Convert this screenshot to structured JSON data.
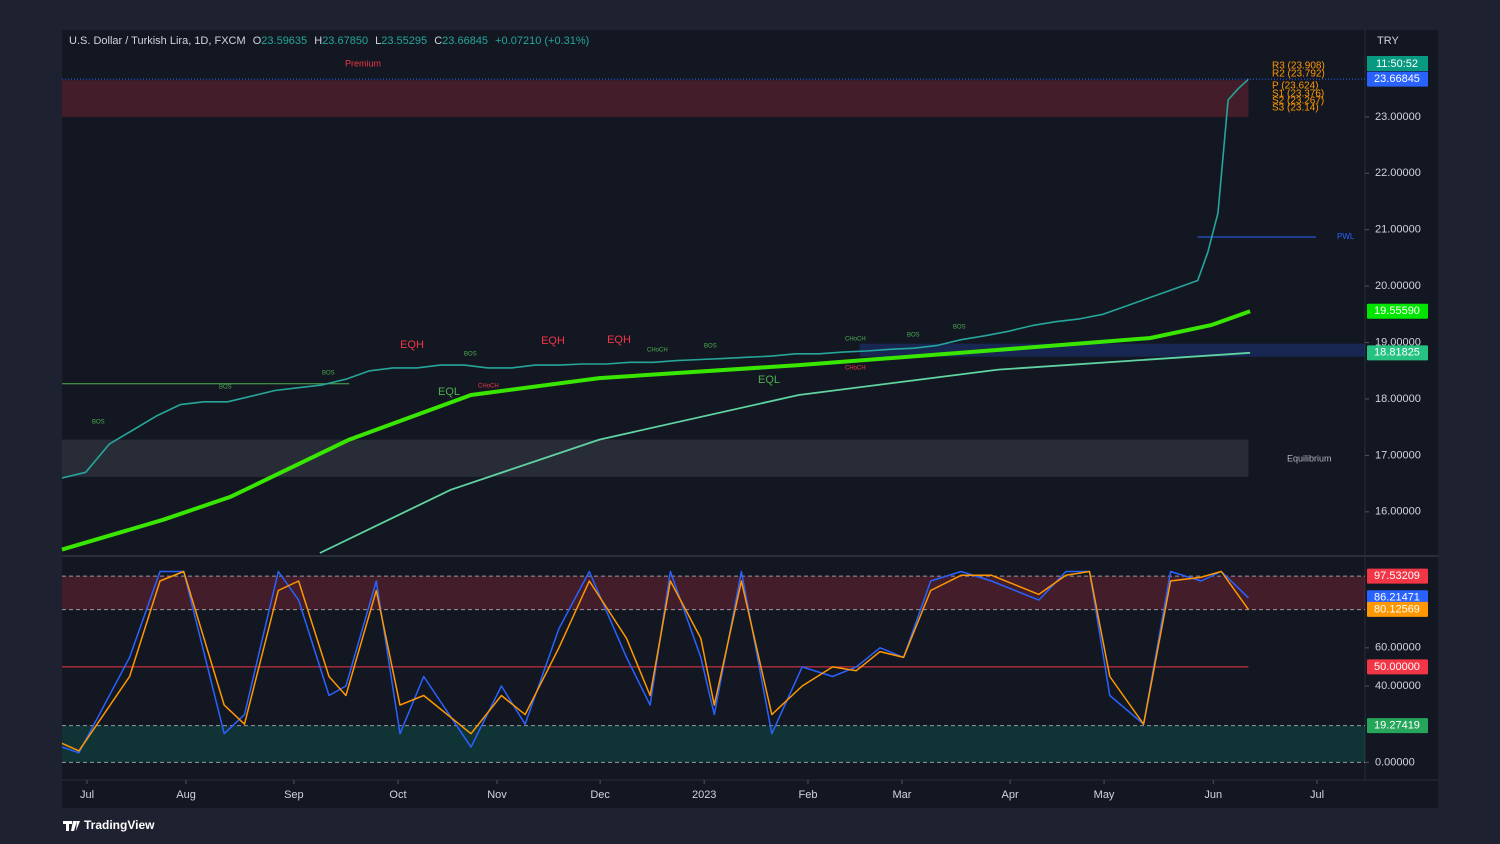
{
  "header": {
    "symbol": "U.S. Dollar / Turkish Lira, 1D, FXCM",
    "ohlc": [
      {
        "key": "O",
        "value": "23.59635"
      },
      {
        "key": "H",
        "value": "23.67850"
      },
      {
        "key": "L",
        "value": "23.55295"
      },
      {
        "key": "C",
        "value": "23.66845"
      }
    ],
    "change": "+0.07210 (+0.31%)",
    "countdown": "11:50:52",
    "currency": "TRY"
  },
  "chart_data": [
    {
      "type": "line",
      "xlim": [
        0,
        385.5
      ],
      "xticks": [
        {
          "value": 7.4,
          "label": "Jul"
        },
        {
          "value": 36.7,
          "label": "Aug"
        },
        {
          "value": 68.6,
          "label": "Sep"
        },
        {
          "value": 99.4,
          "label": "Oct"
        },
        {
          "value": 128.7,
          "label": "Nov"
        },
        {
          "value": 159.2,
          "label": "Dec"
        },
        {
          "value": 190,
          "label": "2023"
        },
        {
          "value": 220.7,
          "label": "Feb"
        },
        {
          "value": 248.5,
          "label": "Mar"
        },
        {
          "value": 280.5,
          "label": "Apr"
        },
        {
          "value": 308.3,
          "label": "May"
        },
        {
          "value": 340.6,
          "label": "Jun"
        },
        {
          "value": 371.3,
          "label": "Jul"
        }
      ],
      "ylim": [
        15.27,
        24.54
      ],
      "yticks": [
        {
          "value": 16,
          "label": "16.00000"
        },
        {
          "value": 17,
          "label": "17.00000"
        },
        {
          "value": 18,
          "label": "18.00000"
        },
        {
          "value": 19,
          "label": "19.00000"
        },
        {
          "value": 20,
          "label": "20.00000"
        },
        {
          "value": 21,
          "label": "21.00000"
        },
        {
          "value": 22,
          "label": "22.00000"
        },
        {
          "value": 23,
          "label": "23.00000"
        }
      ],
      "grid": false,
      "series": [
        {
          "name": "U.S. Dollar / Turkish Lira",
          "color": "#26a69a",
          "width": 1.6,
          "x": [
            0,
            7,
            14,
            21,
            28,
            35,
            42,
            49,
            56,
            63,
            70,
            77,
            84,
            91,
            98,
            105,
            112,
            119,
            126,
            133,
            140,
            147,
            154,
            161,
            168,
            175,
            182,
            189,
            196,
            203,
            210,
            217,
            224,
            231,
            238,
            245,
            252,
            259,
            266,
            273,
            280,
            287,
            294,
            301,
            308,
            315,
            322,
            329,
            336,
            339,
            342,
            345,
            348,
            351
          ],
          "values": [
            16.6,
            16.7,
            17.2,
            17.45,
            17.7,
            17.9,
            17.95,
            17.95,
            18.05,
            18.15,
            18.2,
            18.25,
            18.35,
            18.5,
            18.55,
            18.55,
            18.6,
            18.6,
            18.55,
            18.55,
            18.6,
            18.6,
            18.62,
            18.62,
            18.65,
            18.65,
            18.68,
            18.7,
            18.72,
            18.74,
            18.76,
            18.8,
            18.8,
            18.83,
            18.85,
            18.88,
            18.9,
            18.95,
            19.05,
            19.12,
            19.2,
            19.3,
            19.37,
            19.42,
            19.5,
            19.65,
            19.8,
            19.95,
            20.1,
            20.6,
            21.3,
            23.3,
            23.5,
            23.66845
          ]
        },
        {
          "color": "#39e600",
          "width": 4,
          "x": [
            0,
            30,
            50,
            85,
            121,
            159,
            218,
            277,
            322,
            340,
            351.5
          ],
          "values": [
            15.33,
            15.86,
            16.27,
            17.28,
            18.07,
            18.37,
            18.6,
            18.87,
            19.08,
            19.31,
            19.5559
          ]
        },
        {
          "color": "#5fd3a0",
          "width": 1.8,
          "x": [
            76.3,
            115,
            159,
            218,
            277,
            351.5
          ],
          "values": [
            15.27,
            16.39,
            17.28,
            18.07,
            18.52,
            18.81825
          ]
        }
      ],
      "zones": [
        {
          "from": 0,
          "to": 351,
          "low": 23.0,
          "high": 23.65,
          "color": "#f23645"
        },
        {
          "from": 0,
          "to": 351,
          "low": 16.62,
          "high": 17.28,
          "color": "#787b86"
        },
        {
          "from": 236,
          "to": 385.5,
          "low": 18.75,
          "high": 18.98,
          "color": "#2962ff"
        }
      ],
      "lines": [
        {
          "value": 18.27,
          "from": 0,
          "to": 85,
          "color": "#4caf50"
        },
        {
          "value": 20.87,
          "from": 336,
          "to": 371,
          "color": "#2962ff"
        },
        {
          "value": 23.66845,
          "from": 0,
          "to": 385.5,
          "color": "#2962ff"
        }
      ],
      "tags": [
        {
          "value": 23.66845,
          "color": "#2962ff"
        },
        {
          "value": 19.5559,
          "label": "19.55590",
          "color": "#00e600"
        },
        {
          "value": 18.81825,
          "color": "#26c281"
        }
      ],
      "annotations": [
        "Premium",
        "EQH",
        "EQH",
        "EQH",
        "EQL",
        "EQL",
        "BOS",
        "BOS",
        "BOS",
        "BOS",
        "BOS",
        "BOS",
        "BOS",
        "CHoCH",
        "CHoCH",
        "CHoCH",
        "CHoCH",
        "PWL",
        "Equilibrium",
        "R3 (23.908)",
        "R2 (23.792)",
        "P (23.624)",
        "S1 (23.376)",
        "S2 (23.267)",
        "S3 (23.14)"
      ]
    },
    {
      "type": "line",
      "xlim": [
        0,
        385.5
      ],
      "ylim": [
        -4,
        106
      ],
      "yticks": [
        {
          "value": 60,
          "label": "60.00000"
        },
        {
          "value": 40,
          "label": "40.00000"
        },
        {
          "value": 0,
          "label": "0.00000"
        }
      ],
      "grid": false,
      "series": [
        {
          "color": "#2962ff",
          "width": 1.5,
          "x": [
            0,
            5,
            20,
            29,
            36,
            48,
            54,
            64,
            70,
            79,
            84,
            93,
            100,
            107,
            121,
            130,
            137,
            147,
            156,
            167,
            174,
            180,
            189,
            193,
            201,
            210,
            219,
            228,
            235,
            242,
            249,
            257,
            266,
            275,
            289,
            297,
            304,
            310,
            320,
            328,
            337,
            343,
            351
          ],
          "values": [
            8,
            5,
            55,
            100,
            100,
            15,
            25,
            100,
            85,
            35,
            40,
            95,
            15,
            45,
            8,
            40,
            20,
            70,
            100,
            55,
            30,
            100,
            55,
            25,
            100,
            15,
            50,
            45,
            50,
            60,
            55,
            95,
            100,
            95,
            85,
            100,
            100,
            35,
            20,
            100,
            95,
            100,
            86.21471
          ]
        },
        {
          "color": "#ff9800",
          "width": 1.5,
          "x": [
            0,
            5,
            20,
            29,
            36,
            48,
            54,
            64,
            70,
            79,
            84,
            93,
            100,
            107,
            121,
            130,
            137,
            147,
            156,
            167,
            174,
            180,
            189,
            193,
            201,
            210,
            219,
            228,
            235,
            242,
            249,
            257,
            266,
            275,
            289,
            297,
            304,
            310,
            320,
            328,
            337,
            343,
            351
          ],
          "values": [
            10,
            6,
            45,
            95,
            100,
            30,
            20,
            90,
            95,
            45,
            35,
            90,
            30,
            35,
            15,
            35,
            25,
            60,
            95,
            65,
            35,
            95,
            65,
            30,
            95,
            25,
            40,
            50,
            48,
            58,
            55,
            90,
            98,
            98,
            88,
            98,
            100,
            45,
            20,
            95,
            97,
            100,
            80.12569
          ]
        }
      ],
      "zones": [
        {
          "from": 0,
          "to": 385.5,
          "low": 80,
          "high": 97.53209,
          "color": "#f23645"
        },
        {
          "from": 0,
          "to": 385.5,
          "low": 0,
          "high": 19.27419,
          "color": "#089981"
        }
      ],
      "lines": [
        {
          "value": 97.53209,
          "from": 0,
          "to": 385.5,
          "color": "#9598a1"
        },
        {
          "value": 80,
          "from": 0,
          "to": 385.5,
          "color": "#9598a1"
        },
        {
          "value": 50,
          "from": 0,
          "to": 351,
          "color": "#f23645"
        },
        {
          "value": 19.27419,
          "from": 0,
          "to": 385.5,
          "color": "#9598a1"
        },
        {
          "value": 0,
          "from": 0,
          "to": 385.5,
          "color": "#9598a1"
        }
      ],
      "tags": [
        {
          "value": 97.53209,
          "color": "#f23645"
        },
        {
          "value": 86.21471,
          "color": "#2962ff"
        },
        {
          "value": 80.12569,
          "color": "#ff9800"
        },
        {
          "value": 50,
          "label": "50.00000",
          "color": "#f23645"
        },
        {
          "value": 19.27419,
          "color": "#26a65b"
        }
      ]
    }
  ],
  "footer": {
    "brand": "TradingView"
  }
}
